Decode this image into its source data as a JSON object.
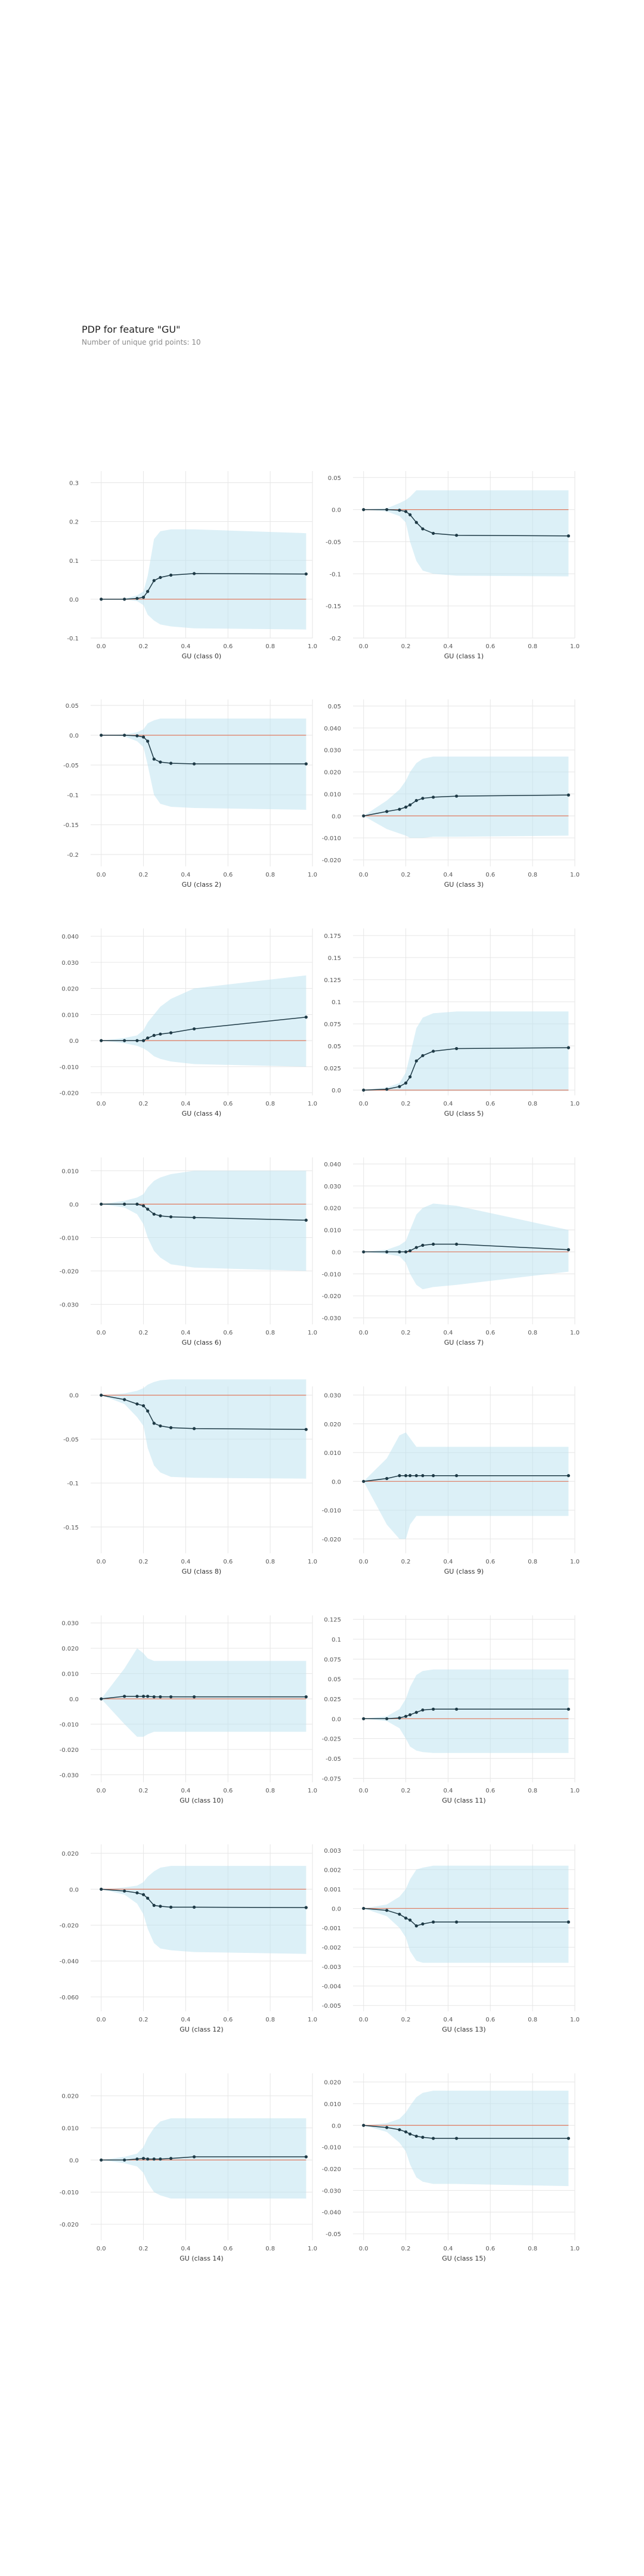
{
  "header": {
    "title": "PDP for feature \"GU\"",
    "subtitle": "Number of unique grid points: 10"
  },
  "colors": {
    "band": "#b9e1ef",
    "line": "#1e3a46",
    "baseline": "#e07a5f",
    "grid": "#e6e6e6",
    "tick_text": "#555555"
  },
  "chart_data": [
    {
      "type": "line",
      "xlabel": "GU (class 0)",
      "x": [
        0,
        0.11,
        0.17,
        0.2,
        0.22,
        0.25,
        0.28,
        0.33,
        0.44,
        0.97
      ],
      "xticks": [
        "0.0",
        "0.2",
        "0.4",
        "0.6",
        "0.8",
        "1.0"
      ],
      "yticks": [
        -0.1,
        0,
        0.1,
        0.2,
        0.3
      ],
      "ylim": [
        -0.1,
        0.33
      ],
      "y": [
        0,
        0,
        0.002,
        0.005,
        0.02,
        0.048,
        0.056,
        0.062,
        0.066,
        0.065
      ],
      "band_upper": [
        0,
        0.001,
        0.01,
        0.02,
        0.06,
        0.155,
        0.175,
        0.18,
        0.18,
        0.17
      ],
      "band_lower": [
        0,
        -0.001,
        -0.005,
        -0.015,
        -0.04,
        -0.055,
        -0.065,
        -0.07,
        -0.075,
        -0.078
      ]
    },
    {
      "type": "line",
      "xlabel": "GU (class 1)",
      "x": [
        0,
        0.11,
        0.17,
        0.2,
        0.22,
        0.25,
        0.28,
        0.33,
        0.44,
        0.97
      ],
      "xticks": [
        "0.0",
        "0.2",
        "0.4",
        "0.6",
        "0.8",
        "1.0"
      ],
      "yticks": [
        -0.2,
        -0.15,
        -0.1,
        -0.05,
        0,
        0.05
      ],
      "ylim": [
        -0.2,
        0.06
      ],
      "y": [
        0,
        0,
        -0.001,
        -0.003,
        -0.008,
        -0.02,
        -0.03,
        -0.037,
        -0.04,
        -0.041
      ],
      "band_upper": [
        0,
        0.002,
        0.01,
        0.015,
        0.02,
        0.03,
        0.03,
        0.03,
        0.03,
        0.03
      ],
      "band_lower": [
        0,
        -0.003,
        -0.01,
        -0.02,
        -0.05,
        -0.08,
        -0.095,
        -0.1,
        -0.103,
        -0.104
      ]
    },
    {
      "type": "line",
      "xlabel": "GU (class 2)",
      "x": [
        0,
        0.11,
        0.17,
        0.2,
        0.22,
        0.25,
        0.28,
        0.33,
        0.44,
        0.97
      ],
      "xticks": [
        "0.0",
        "0.2",
        "0.4",
        "0.6",
        "0.8",
        "1.0"
      ],
      "yticks": [
        -0.2,
        -0.15,
        -0.1,
        -0.05,
        0,
        0.05
      ],
      "ylim": [
        -0.22,
        0.06
      ],
      "y": [
        0,
        0,
        -0.001,
        -0.003,
        -0.01,
        -0.04,
        -0.045,
        -0.047,
        -0.048,
        -0.048
      ],
      "band_upper": [
        0,
        0.001,
        0.005,
        0.01,
        0.02,
        0.025,
        0.028,
        0.028,
        0.028,
        0.028
      ],
      "band_lower": [
        0,
        -0.002,
        -0.01,
        -0.02,
        -0.05,
        -0.1,
        -0.115,
        -0.12,
        -0.122,
        -0.125
      ]
    },
    {
      "type": "line",
      "xlabel": "GU (class 3)",
      "x": [
        0,
        0.11,
        0.17,
        0.2,
        0.22,
        0.25,
        0.28,
        0.33,
        0.44,
        0.97
      ],
      "xticks": [
        "0.0",
        "0.2",
        "0.4",
        "0.6",
        "0.8",
        "1.0"
      ],
      "yticks": [
        -0.02,
        -0.01,
        0,
        0.01,
        0.02,
        0.03,
        0.04,
        0.05
      ],
      "ylim": [
        -0.023,
        0.053
      ],
      "y": [
        0,
        0.002,
        0.003,
        0.004,
        0.005,
        0.007,
        0.008,
        0.0085,
        0.009,
        0.0095
      ],
      "band_upper": [
        0,
        0.007,
        0.012,
        0.016,
        0.02,
        0.024,
        0.026,
        0.027,
        0.027,
        0.027
      ],
      "band_lower": [
        0,
        -0.006,
        -0.008,
        -0.009,
        -0.01,
        -0.01,
        -0.01,
        -0.0095,
        -0.0095,
        -0.009
      ]
    },
    {
      "type": "line",
      "xlabel": "GU (class 4)",
      "x": [
        0,
        0.11,
        0.17,
        0.2,
        0.22,
        0.25,
        0.28,
        0.33,
        0.44,
        0.97
      ],
      "xticks": [
        "0.0",
        "0.2",
        "0.4",
        "0.6",
        "0.8",
        "1.0"
      ],
      "yticks": [
        -0.02,
        -0.01,
        0,
        0.01,
        0.02,
        0.03,
        0.04
      ],
      "ylim": [
        -0.021,
        0.043
      ],
      "y": [
        0,
        0,
        0,
        0,
        0.001,
        0.002,
        0.0025,
        0.003,
        0.0045,
        0.009
      ],
      "band_upper": [
        0,
        0.001,
        0.002,
        0.004,
        0.007,
        0.01,
        0.013,
        0.016,
        0.02,
        0.025
      ],
      "band_lower": [
        0,
        -0.001,
        -0.002,
        -0.003,
        -0.004,
        -0.006,
        -0.007,
        -0.008,
        -0.009,
        -0.01
      ]
    },
    {
      "type": "line",
      "xlabel": "GU (class 5)",
      "x": [
        0,
        0.11,
        0.17,
        0.2,
        0.22,
        0.25,
        0.28,
        0.33,
        0.44,
        0.97
      ],
      "xticks": [
        "0.0",
        "0.2",
        "0.4",
        "0.6",
        "0.8",
        "1.0"
      ],
      "yticks": [
        0,
        0.025,
        0.05,
        0.075,
        0.1,
        0.125,
        0.15,
        0.175
      ],
      "ylim": [
        -0.006,
        0.183
      ],
      "y": [
        0,
        0.001,
        0.004,
        0.008,
        0.015,
        0.033,
        0.039,
        0.044,
        0.047,
        0.048
      ],
      "band_upper": [
        0,
        0.003,
        0.008,
        0.02,
        0.04,
        0.07,
        0.082,
        0.087,
        0.089,
        0.089
      ],
      "band_lower": [
        0,
        -0.001,
        -0.001,
        -0.001,
        -0.001,
        -0.001,
        -0.001,
        -0.001,
        -0.001,
        -0.001
      ]
    },
    {
      "type": "line",
      "xlabel": "GU (class 6)",
      "x": [
        0,
        0.11,
        0.17,
        0.2,
        0.22,
        0.25,
        0.28,
        0.33,
        0.44,
        0.97
      ],
      "xticks": [
        "0.0",
        "0.2",
        "0.4",
        "0.6",
        "0.8",
        "1.0"
      ],
      "yticks": [
        -0.03,
        -0.02,
        -0.01,
        0,
        0.01
      ],
      "ylim": [
        -0.036,
        0.014
      ],
      "y": [
        0,
        0,
        0,
        -0.0005,
        -0.0015,
        -0.003,
        -0.0035,
        -0.0038,
        -0.004,
        -0.0048
      ],
      "band_upper": [
        0,
        0.001,
        0.002,
        0.003,
        0.005,
        0.007,
        0.008,
        0.009,
        0.01,
        0.01
      ],
      "band_lower": [
        0,
        -0.001,
        -0.003,
        -0.006,
        -0.01,
        -0.014,
        -0.016,
        -0.018,
        -0.019,
        -0.02
      ]
    },
    {
      "type": "line",
      "xlabel": "GU (class 7)",
      "x": [
        0,
        0.11,
        0.17,
        0.2,
        0.22,
        0.25,
        0.28,
        0.33,
        0.44,
        0.97
      ],
      "xticks": [
        "0.0",
        "0.2",
        "0.4",
        "0.6",
        "0.8",
        "1.0"
      ],
      "yticks": [
        -0.03,
        -0.02,
        -0.01,
        0,
        0.01,
        0.02,
        0.03,
        0.04
      ],
      "ylim": [
        -0.033,
        0.043
      ],
      "y": [
        0,
        0,
        0,
        0,
        0.0005,
        0.002,
        0.003,
        0.0035,
        0.0035,
        0.001
      ],
      "band_upper": [
        0,
        0.001,
        0.003,
        0.005,
        0.01,
        0.017,
        0.02,
        0.022,
        0.021,
        0.01
      ],
      "band_lower": [
        0,
        -0.001,
        -0.002,
        -0.005,
        -0.01,
        -0.015,
        -0.017,
        -0.016,
        -0.015,
        -0.009
      ]
    },
    {
      "type": "line",
      "xlabel": "GU (class 8)",
      "x": [
        0,
        0.11,
        0.17,
        0.2,
        0.22,
        0.25,
        0.28,
        0.33,
        0.44,
        0.97
      ],
      "xticks": [
        "0.0",
        "0.2",
        "0.4",
        "0.6",
        "0.8",
        "1.0"
      ],
      "yticks": [
        -0.15,
        -0.1,
        -0.05,
        0
      ],
      "ylim": [
        -0.18,
        0.01
      ],
      "y": [
        0,
        -0.005,
        -0.01,
        -0.012,
        -0.018,
        -0.032,
        -0.035,
        -0.037,
        -0.038,
        -0.039
      ],
      "band_upper": [
        0,
        0.002,
        0.005,
        0.008,
        0.012,
        0.015,
        0.017,
        0.018,
        0.018,
        0.018
      ],
      "band_lower": [
        0,
        -0.01,
        -0.025,
        -0.035,
        -0.06,
        -0.08,
        -0.088,
        -0.093,
        -0.094,
        -0.095
      ]
    },
    {
      "type": "line",
      "xlabel": "GU (class 9)",
      "x": [
        0,
        0.11,
        0.17,
        0.2,
        0.22,
        0.25,
        0.28,
        0.33,
        0.44,
        0.97
      ],
      "xticks": [
        "0.0",
        "0.2",
        "0.4",
        "0.6",
        "0.8",
        "1.0"
      ],
      "yticks": [
        -0.02,
        -0.01,
        0,
        0.01,
        0.02,
        0.03
      ],
      "ylim": [
        -0.025,
        0.033
      ],
      "y": [
        0,
        0.001,
        0.002,
        0.002,
        0.002,
        0.002,
        0.002,
        0.002,
        0.002,
        0.002
      ],
      "band_upper": [
        0,
        0.008,
        0.016,
        0.017,
        0.015,
        0.012,
        0.012,
        0.012,
        0.012,
        0.012
      ],
      "band_lower": [
        0,
        -0.015,
        -0.02,
        -0.02,
        -0.015,
        -0.012,
        -0.012,
        -0.012,
        -0.012,
        -0.012
      ]
    },
    {
      "type": "line",
      "xlabel": "GU (class 10)",
      "x": [
        0,
        0.11,
        0.17,
        0.2,
        0.22,
        0.25,
        0.28,
        0.33,
        0.44,
        0.97
      ],
      "xticks": [
        "0.0",
        "0.2",
        "0.4",
        "0.6",
        "0.8",
        "1.0"
      ],
      "yticks": [
        -0.03,
        -0.02,
        -0.01,
        0,
        0.01,
        0.02,
        0.03
      ],
      "ylim": [
        -0.033,
        0.033
      ],
      "y": [
        0,
        0.001,
        0.001,
        0.001,
        0.001,
        0.0008,
        0.0008,
        0.0008,
        0.0008,
        0.0008
      ],
      "band_upper": [
        0,
        0.012,
        0.02,
        0.018,
        0.016,
        0.015,
        0.015,
        0.015,
        0.015,
        0.015
      ],
      "band_lower": [
        0,
        -0.01,
        -0.015,
        -0.015,
        -0.014,
        -0.013,
        -0.013,
        -0.013,
        -0.013,
        -0.013
      ]
    },
    {
      "type": "line",
      "xlabel": "GU (class 11)",
      "x": [
        0,
        0.11,
        0.17,
        0.2,
        0.22,
        0.25,
        0.28,
        0.33,
        0.44,
        0.97
      ],
      "xticks": [
        "0.0",
        "0.2",
        "0.4",
        "0.6",
        "0.8",
        "1.0"
      ],
      "yticks": [
        -0.075,
        -0.05,
        -0.025,
        0,
        0.025,
        0.05,
        0.075,
        0.1,
        0.125
      ],
      "ylim": [
        -0.08,
        0.13
      ],
      "y": [
        0,
        0,
        0.001,
        0.003,
        0.005,
        0.008,
        0.011,
        0.012,
        0.012,
        0.012
      ],
      "band_upper": [
        0,
        0.003,
        0.012,
        0.025,
        0.04,
        0.055,
        0.06,
        0.062,
        0.062,
        0.062
      ],
      "band_lower": [
        0,
        -0.003,
        -0.012,
        -0.025,
        -0.035,
        -0.04,
        -0.042,
        -0.043,
        -0.043,
        -0.043
      ]
    },
    {
      "type": "line",
      "xlabel": "GU (class 12)",
      "x": [
        0,
        0.11,
        0.17,
        0.2,
        0.22,
        0.25,
        0.28,
        0.33,
        0.44,
        0.97
      ],
      "xticks": [
        "0.0",
        "0.2",
        "0.4",
        "0.6",
        "0.8",
        "1.0"
      ],
      "yticks": [
        -0.06,
        -0.04,
        -0.02,
        0,
        0.02
      ],
      "ylim": [
        -0.068,
        0.025
      ],
      "y": [
        0,
        -0.001,
        -0.002,
        -0.003,
        -0.005,
        -0.009,
        -0.0095,
        -0.01,
        -0.01,
        -0.0102
      ],
      "band_upper": [
        0,
        0.001,
        0.002,
        0.004,
        0.007,
        0.01,
        0.012,
        0.013,
        0.013,
        0.013
      ],
      "band_lower": [
        0,
        -0.003,
        -0.008,
        -0.014,
        -0.022,
        -0.03,
        -0.033,
        -0.034,
        -0.035,
        -0.036
      ]
    },
    {
      "type": "line",
      "xlabel": "GU (class 13)",
      "x": [
        0,
        0.11,
        0.17,
        0.2,
        0.22,
        0.25,
        0.28,
        0.33,
        0.44,
        0.97
      ],
      "xticks": [
        "0.0",
        "0.2",
        "0.4",
        "0.6",
        "0.8",
        "1.0"
      ],
      "yticks": [
        -0.005,
        -0.004,
        -0.003,
        -0.002,
        -0.001,
        0,
        0.001,
        0.002,
        0.003
      ],
      "ylim": [
        -0.0053,
        0.0033
      ],
      "y": [
        0,
        -0.0001,
        -0.0003,
        -0.0005,
        -0.0006,
        -0.0009,
        -0.0008,
        -0.0007,
        -0.0007,
        -0.0007
      ],
      "band_upper": [
        0,
        0.0002,
        0.0006,
        0.001,
        0.0015,
        0.002,
        0.0021,
        0.0022,
        0.0022,
        0.0022
      ],
      "band_lower": [
        0,
        -0.0004,
        -0.001,
        -0.0015,
        -0.0022,
        -0.0027,
        -0.0028,
        -0.0028,
        -0.0028,
        -0.0028
      ]
    },
    {
      "type": "line",
      "xlabel": "GU (class 14)",
      "x": [
        0,
        0.11,
        0.17,
        0.2,
        0.22,
        0.25,
        0.28,
        0.33,
        0.44,
        0.97
      ],
      "xticks": [
        "0.0",
        "0.2",
        "0.4",
        "0.6",
        "0.8",
        "1.0"
      ],
      "yticks": [
        -0.02,
        -0.01,
        0,
        0.01,
        0.02
      ],
      "ylim": [
        -0.025,
        0.027
      ],
      "y": [
        0,
        0,
        0.0003,
        0.0005,
        0.0003,
        0.0003,
        0.0003,
        0.0005,
        0.001,
        0.001
      ],
      "band_upper": [
        0,
        0.001,
        0.002,
        0.004,
        0.007,
        0.01,
        0.012,
        0.013,
        0.013,
        0.013
      ],
      "band_lower": [
        0,
        -0.001,
        -0.002,
        -0.004,
        -0.007,
        -0.01,
        -0.011,
        -0.012,
        -0.012,
        -0.012
      ]
    },
    {
      "type": "line",
      "xlabel": "GU (class 15)",
      "x": [
        0,
        0.11,
        0.17,
        0.2,
        0.22,
        0.25,
        0.28,
        0.33,
        0.44,
        0.97
      ],
      "xticks": [
        "0.0",
        "0.2",
        "0.4",
        "0.6",
        "0.8",
        "1.0"
      ],
      "yticks": [
        -0.05,
        -0.04,
        -0.03,
        -0.02,
        -0.01,
        0,
        0.01,
        0.02
      ],
      "ylim": [
        -0.053,
        0.024
      ],
      "y": [
        0,
        -0.001,
        -0.002,
        -0.003,
        -0.004,
        -0.005,
        -0.0055,
        -0.006,
        -0.006,
        -0.006
      ],
      "band_upper": [
        0,
        0.001,
        0.003,
        0.006,
        0.009,
        0.013,
        0.015,
        0.016,
        0.016,
        0.016
      ],
      "band_lower": [
        0,
        -0.003,
        -0.008,
        -0.012,
        -0.018,
        -0.024,
        -0.026,
        -0.027,
        -0.027,
        -0.028
      ]
    }
  ]
}
